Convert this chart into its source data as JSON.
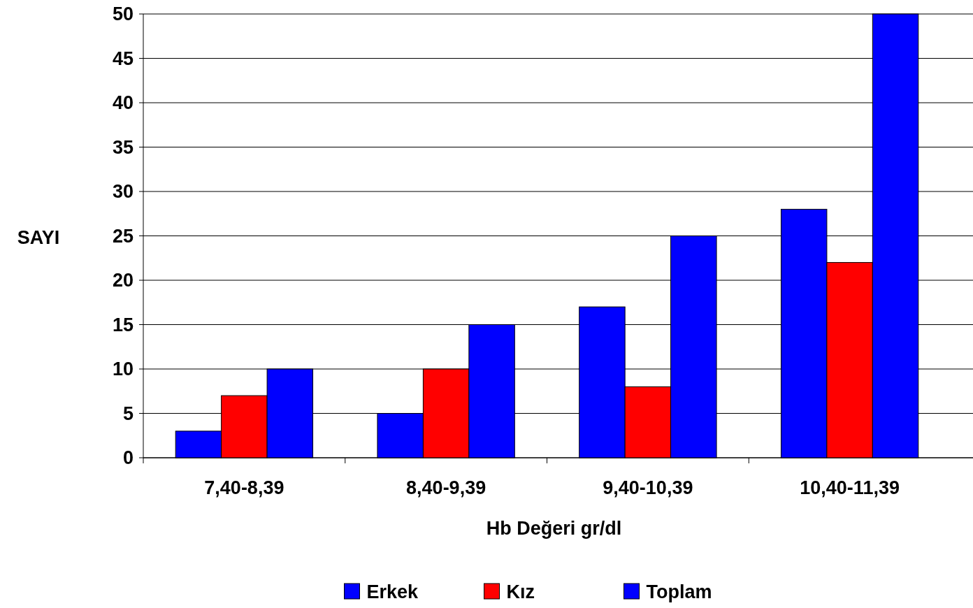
{
  "chart_data": {
    "type": "bar",
    "xlabel": "Hb Değeri gr/dl",
    "ylabel": "SAYI",
    "categories": [
      "7,40-8,39",
      "8,40-9,39",
      "9,40-10,39",
      "10,40-11,39"
    ],
    "series": [
      {
        "name": "Erkek",
        "color": "#0000ff",
        "values": [
          3,
          5,
          17,
          28
        ]
      },
      {
        "name": "Kız",
        "color": "#ff0000",
        "values": [
          7,
          10,
          8,
          22
        ]
      },
      {
        "name": "Toplam",
        "color": "#0000ff",
        "values": [
          10,
          15,
          25,
          50
        ]
      }
    ],
    "ylim": [
      0,
      50
    ],
    "yticks": [
      0,
      5,
      10,
      15,
      20,
      25,
      30,
      35,
      40,
      45,
      50
    ],
    "grid": "y",
    "legend": "bottom"
  }
}
